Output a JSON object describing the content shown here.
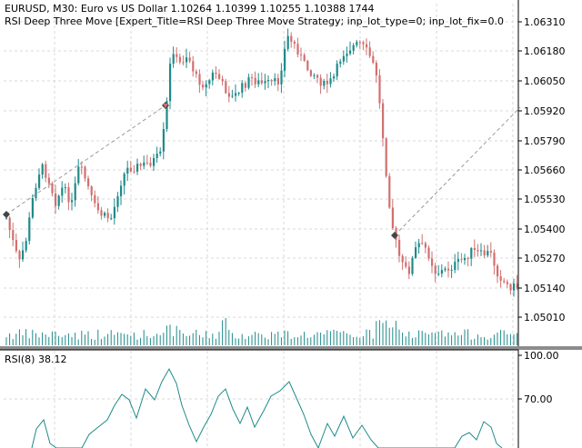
{
  "header": {
    "symbol_line": "EURUSD, M30:  Euro vs US Dollar  1.10264 1.10399 1.10255 1.10388  1744",
    "expert_line": "RSI Deep Three Move [Expert_Title=RSI Deep Three Move Strategy; inp_lot_type=0; inp_lot_fix=0.0"
  },
  "price_axis": {
    "ticks": [
      "1.06310",
      "1.06180",
      "1.06050",
      "1.05920",
      "1.05790",
      "1.05660",
      "1.05530",
      "1.05400",
      "1.05270",
      "1.05140",
      "1.05010"
    ]
  },
  "rsi_panel": {
    "title": "RSI(8) 38.12",
    "ticks": [
      "100.00",
      "70.00"
    ]
  },
  "colors": {
    "bull": "#1f8a8a",
    "bear": "#d1706f",
    "volume": "#1f8a8a",
    "grid": "#d9d9d9",
    "trade_line": "#9a9a9a",
    "rsi_line": "#1f8a8a"
  }
}
